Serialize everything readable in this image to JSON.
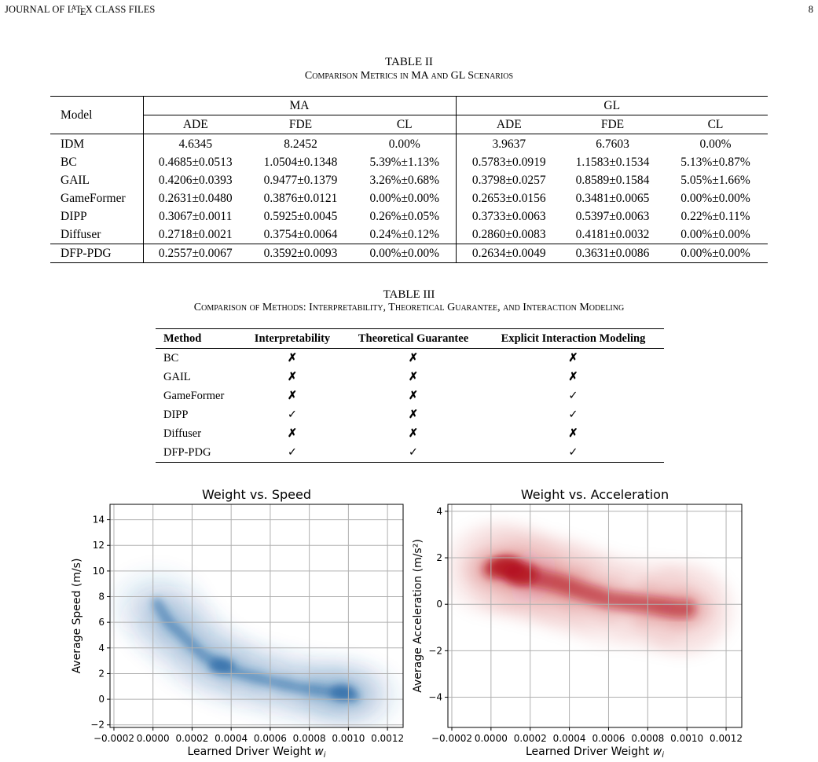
{
  "header": {
    "journal": "JOURNAL OF L",
    "latex_a": "A",
    "latex_te": "T",
    "latex_e": "E",
    "latex_x": "X",
    "journal_rest": " CLASS FILES",
    "page": "8"
  },
  "table2": {
    "caption": "TABLE II",
    "subtitle": "Comparison Metrics in MA and GL Scenarios",
    "model_header": "Model",
    "groups": [
      "MA",
      "GL"
    ],
    "metrics": [
      "ADE",
      "FDE",
      "CL",
      "ADE",
      "FDE",
      "CL"
    ],
    "rows": [
      [
        "IDM",
        "4.6345",
        "8.2452",
        "0.00%",
        "3.9637",
        "6.7603",
        "0.00%"
      ],
      [
        "BC",
        "0.4685±0.0513",
        "1.0504±0.1348",
        "5.39%±1.13%",
        "0.5783±0.0919",
        "1.1583±0.1534",
        "5.13%±0.87%"
      ],
      [
        "GAIL",
        "0.4206±0.0393",
        "0.9477±0.1379",
        "3.26%±0.68%",
        "0.3798±0.0257",
        "0.8589±0.1584",
        "5.05%±1.66%"
      ],
      [
        "GameFormer",
        "0.2631±0.0480",
        "0.3876±0.0121",
        "0.00%±0.00%",
        "0.2653±0.0156",
        "0.3481±0.0065",
        "0.00%±0.00%"
      ],
      [
        "DIPP",
        "0.3067±0.0011",
        "0.5925±0.0045",
        "0.26%±0.05%",
        "0.3733±0.0063",
        "0.5397±0.0063",
        "0.22%±0.11%"
      ],
      [
        "Diffuser",
        "0.2718±0.0021",
        "0.3754±0.0064",
        "0.24%±0.12%",
        "0.2860±0.0083",
        "0.4181±0.0032",
        "0.00%±0.00%"
      ]
    ],
    "final_row": [
      "DFP-PDG",
      "0.2557±0.0067",
      "0.3592±0.0093",
      "0.00%±0.00%",
      "0.2634±0.0049",
      "0.3631±0.0086",
      "0.00%±0.00%"
    ]
  },
  "table3": {
    "caption": "TABLE III",
    "subtitle": "Comparison of Methods: Interpretability, Theoretical Guarantee, and Interaction Modeling",
    "headers": [
      "Method",
      "Interpretability",
      "Theoretical Guarantee",
      "Explicit Interaction Modeling"
    ],
    "rows": [
      [
        "BC",
        "✗",
        "✗",
        "✗"
      ],
      [
        "GAIL",
        "✗",
        "✗",
        "✗"
      ],
      [
        "GameFormer",
        "✗",
        "✗",
        "✓"
      ],
      [
        "DIPP",
        "✓",
        "✗",
        "✓"
      ],
      [
        "Diffuser",
        "✗",
        "✗",
        "✗"
      ],
      [
        "DFP-PDG",
        "✓",
        "✓",
        "✓"
      ]
    ]
  },
  "chart_data": [
    {
      "type": "heatmap",
      "subtype": "kde-density",
      "title": "Weight vs. Speed",
      "xlabel": "Learned Driver Weight w_i",
      "ylabel": "Average Speed (m/s)",
      "xlim": [
        -0.00022,
        0.00128
      ],
      "ylim": [
        -2.2,
        15.2
      ],
      "xticks": [
        "−0.0002",
        "0.0000",
        "0.0002",
        "0.0004",
        "0.0006",
        "0.0008",
        "0.0010",
        "0.0012"
      ],
      "yticks": [
        "−2",
        "0",
        "2",
        "4",
        "6",
        "8",
        "10",
        "12",
        "14"
      ],
      "color": "#2c6ba8",
      "grid": true,
      "x": [
        2e-05,
        8e-05,
        0.00015,
        0.00025,
        0.00035,
        0.00045,
        0.0006,
        0.00075,
        0.0009,
        0.00097,
        0.00103
      ],
      "y": [
        7.5,
        6.0,
        5.0,
        3.5,
        2.6,
        2.0,
        1.4,
        0.9,
        0.6,
        0.5,
        0.2
      ]
    },
    {
      "type": "heatmap",
      "subtype": "kde-density",
      "title": "Weight vs. Acceleration",
      "xlabel": "Learned Driver Weight w_i",
      "ylabel": "Average Acceleration (m/s²)",
      "xlim": [
        -0.00022,
        0.00128
      ],
      "ylim": [
        -5.3,
        4.3
      ],
      "xticks": [
        "−0.0002",
        "0.0000",
        "0.0002",
        "0.0004",
        "0.0006",
        "0.0008",
        "0.0010",
        "0.0012"
      ],
      "yticks": [
        "−4",
        "−2",
        "0",
        "2",
        "4"
      ],
      "color": "#b3121c",
      "grid": true,
      "x": [
        0.0,
        8e-05,
        0.00015,
        0.00025,
        0.00035,
        0.00045,
        0.0006,
        0.0008,
        0.00095,
        0.001
      ],
      "y": [
        1.5,
        1.6,
        1.3,
        1.1,
        0.9,
        0.6,
        0.2,
        0.0,
        -0.2,
        -0.2
      ]
    }
  ]
}
